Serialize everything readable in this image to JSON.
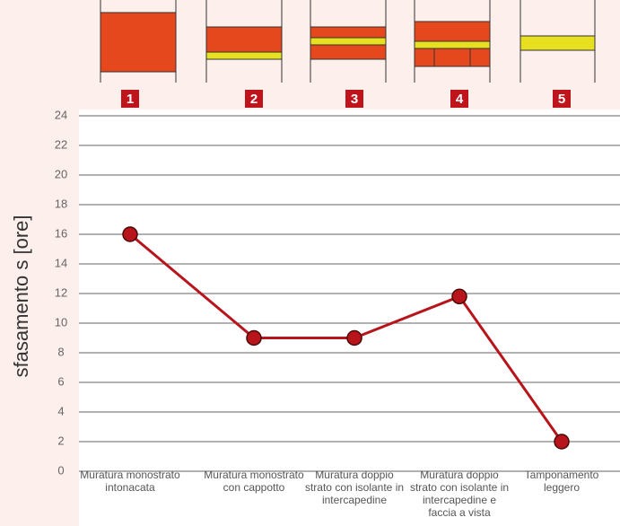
{
  "chart_data": {
    "type": "line",
    "y_label": "sfasamento s [ore]",
    "category_numbers": [
      "1",
      "2",
      "3",
      "4",
      "5"
    ],
    "categories": [
      "Muratura monostrato intonacata",
      "Muratura monostrato con cappotto",
      "Muratura doppio strato con isolante in intercapedine",
      "Muratura doppio strato con isolante in intercapedine e faccia a vista",
      "Tamponamento leggero"
    ],
    "series": [
      {
        "name": "sfasamento",
        "color": "#b8141c",
        "values": [
          16,
          9,
          9,
          11.8,
          2
        ]
      }
    ],
    "ylim": [
      0,
      24
    ],
    "yticks": [
      0,
      2,
      4,
      6,
      8,
      10,
      12,
      14,
      16,
      18,
      20,
      22,
      24
    ],
    "grid": true
  }
}
